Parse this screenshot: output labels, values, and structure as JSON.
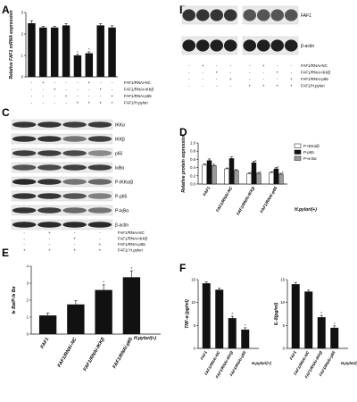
{
  "panels": {
    "A": "A",
    "B": "B",
    "C": "C",
    "D": "D",
    "E": "E",
    "F": "F"
  },
  "colors": {
    "black": "#111111",
    "white": "#ffffff",
    "gray": "#9a9a9a"
  },
  "chart_data": [
    {
      "panel": "A",
      "type": "bar",
      "title": "",
      "ylabel": "Relative FAF1 mRNA expression",
      "ylim": [
        0,
        3
      ],
      "yticks": [
        "0",
        "1",
        "2",
        "3"
      ],
      "values": [
        2.5,
        2.3,
        2.3,
        2.4,
        1.0,
        1.1,
        2.4,
        2.3
      ],
      "errors": [
        0.12,
        0.06,
        0.06,
        0.08,
        0.05,
        0.07,
        0.08,
        0.08
      ],
      "sig": [
        "",
        "",
        "",
        "",
        "*",
        "*",
        "",
        ""
      ],
      "rows": [
        {
          "label": "FAF1/RNAi-NC",
          "marks": [
            "-",
            "+",
            "-",
            "-",
            "-",
            "+",
            "-",
            "-"
          ]
        },
        {
          "label": "FAF1/RNAi-IKKβ",
          "marks": [
            "-",
            "-",
            "+",
            "-",
            "-",
            "-",
            "+",
            "-"
          ]
        },
        {
          "label": "FAF1/RNAi-p65",
          "marks": [
            "-",
            "-",
            "-",
            "+",
            "-",
            "-",
            "-",
            "+"
          ]
        },
        {
          "label": "FAF1/H.pylori",
          "marks": [
            "-",
            "-",
            "-",
            "-",
            "+",
            "+",
            "+",
            "+"
          ]
        }
      ]
    },
    {
      "panel": "D",
      "type": "bar",
      "title": "",
      "ylabel": "Relative protein expression",
      "ylim": [
        0,
        1.0
      ],
      "yticks": [
        "0.0",
        "0.2",
        "0.4",
        "0.6",
        "0.8",
        "1.0"
      ],
      "categories": [
        "FAF1",
        "FAF1/RNAi-NC",
        "FAF1/RNAi-IKKβ",
        "FAF1/RNAi-p65"
      ],
      "xtitle": "H.pylori(+)",
      "legend_position": "top-right",
      "series": [
        {
          "name": "P-IKKα/β",
          "color": "#ffffff",
          "values": [
            0.46,
            0.37,
            0.25,
            0.28
          ],
          "errors": [
            0.03,
            0.02,
            0.02,
            0.02
          ],
          "sig": [
            "",
            "",
            "*",
            "*"
          ]
        },
        {
          "name": "P-p65",
          "color": "#111111",
          "values": [
            0.57,
            0.62,
            0.52,
            0.37
          ],
          "errors": [
            0.04,
            0.04,
            0.03,
            0.03
          ],
          "sig": [
            "",
            "",
            "*",
            "*"
          ]
        },
        {
          "name": "P-Iκ Bα",
          "color": "#9a9a9a",
          "values": [
            0.45,
            0.33,
            0.26,
            0.24
          ],
          "errors": [
            0.03,
            0.02,
            0.02,
            0.02
          ],
          "sig": [
            "",
            "",
            "*",
            "*"
          ]
        }
      ]
    },
    {
      "panel": "E",
      "type": "bar",
      "title": "",
      "ylabel": "Iκ Bα/P-Iκ Bα",
      "ylim": [
        0,
        4
      ],
      "yticks": [
        "0",
        "1",
        "2",
        "3",
        "4"
      ],
      "categories": [
        "FAF1",
        "FAF1/RNAi-NC",
        "FAF1/RNAi-IKKβ",
        "FAF1/RNAi-p65"
      ],
      "xtitle": "H.pylori(+)",
      "values": [
        1.1,
        1.75,
        2.6,
        3.35
      ],
      "errors": [
        0.15,
        0.22,
        0.3,
        0.38
      ],
      "sig": [
        "",
        "",
        "*",
        "*"
      ]
    },
    {
      "panel": "F",
      "type": "bar",
      "title": "",
      "ylabel": "TNF-α (pg/ml)",
      "ylim": [
        0,
        15
      ],
      "yticks": [
        "0",
        "5",
        "10",
        "15"
      ],
      "categories": [
        "FAF1",
        "FAF1/RNAi-NC",
        "FAF1/RNAi-IKKβ",
        "FAF1/RNAi-p65"
      ],
      "xtitle": "H.pylori(+)",
      "values": [
        14.2,
        12.8,
        6.6,
        4.1
      ],
      "errors": [
        0.3,
        0.3,
        0.4,
        0.4
      ],
      "sig": [
        "",
        "",
        "*",
        "*"
      ]
    },
    {
      "panel": "F",
      "type": "bar",
      "title": "",
      "ylabel": "IL-8(pg/ml)",
      "ylim": [
        0,
        15
      ],
      "yticks": [
        "0",
        "5",
        "10",
        "15"
      ],
      "categories": [
        "FAF1",
        "FAF1/RNAi-NC",
        "FAF1/RNAi-IKKβ",
        "FAF1/RNAi-p65"
      ],
      "xtitle": "H.pylori(+)",
      "values": [
        14.0,
        12.4,
        6.8,
        4.5
      ],
      "errors": [
        0.4,
        0.3,
        0.4,
        0.4
      ],
      "sig": [
        "",
        "",
        "*",
        "*"
      ]
    }
  ],
  "blots": {
    "B": {
      "bands": [
        {
          "label": "FAF1",
          "intensity": [
            0.85,
            0.85,
            0.85,
            0.85,
            0.7,
            0.7,
            0.7,
            0.7
          ]
        },
        {
          "label": "β-actin",
          "intensity": [
            0.95,
            0.95,
            0.95,
            0.95,
            0.95,
            0.95,
            0.95,
            0.95
          ]
        }
      ],
      "rows": [
        {
          "label": "FAF1/RNAi-NC",
          "marks": [
            "-",
            "+",
            "-",
            "-",
            "-",
            "+",
            "-",
            "-"
          ]
        },
        {
          "label": "FAF1/RNAi-IKKβ",
          "marks": [
            "-",
            "-",
            "+",
            "-",
            "-",
            "-",
            "+",
            "-"
          ]
        },
        {
          "label": "FAF1/RNAi-p65",
          "marks": [
            "-",
            "-",
            "-",
            "+",
            "-",
            "-",
            "-",
            "+"
          ]
        },
        {
          "label": "FAF1/H.pylori",
          "marks": [
            "-",
            "-",
            "-",
            "-",
            "+",
            "+",
            "+",
            "+"
          ]
        }
      ]
    },
    "C": {
      "bands": [
        {
          "label": "IKKα",
          "intensity": [
            0.85,
            0.85,
            0.8,
            0.82
          ]
        },
        {
          "label": "IKKβ",
          "intensity": [
            0.85,
            0.85,
            0.55,
            0.8
          ]
        },
        {
          "label": "p65",
          "intensity": [
            0.8,
            0.8,
            0.75,
            0.45
          ]
        },
        {
          "label": "IκBα",
          "intensity": [
            0.7,
            0.75,
            0.8,
            0.8
          ]
        },
        {
          "label": "P-IKKα/β",
          "intensity": [
            0.9,
            0.85,
            0.55,
            0.6
          ]
        },
        {
          "label": "P-p65",
          "intensity": [
            0.85,
            0.85,
            0.7,
            0.5
          ]
        },
        {
          "label": "P-IκBα",
          "intensity": [
            0.85,
            0.8,
            0.6,
            0.55
          ]
        },
        {
          "label": "β-actin",
          "intensity": [
            0.9,
            0.9,
            0.9,
            0.9
          ]
        }
      ],
      "rows": [
        {
          "label": "FAF1/RNAi-NC",
          "marks": [
            "-",
            "+",
            "-",
            "-"
          ]
        },
        {
          "label": "FAF1/RNAi-IKKβ",
          "marks": [
            "-",
            "-",
            "+",
            "-"
          ]
        },
        {
          "label": "FAF1/RNAi-p65",
          "marks": [
            "-",
            "-",
            "-",
            "+"
          ]
        },
        {
          "label": "FAF1/ H.pylori",
          "marks": [
            "+",
            "+",
            "+",
            "+"
          ]
        }
      ]
    }
  }
}
